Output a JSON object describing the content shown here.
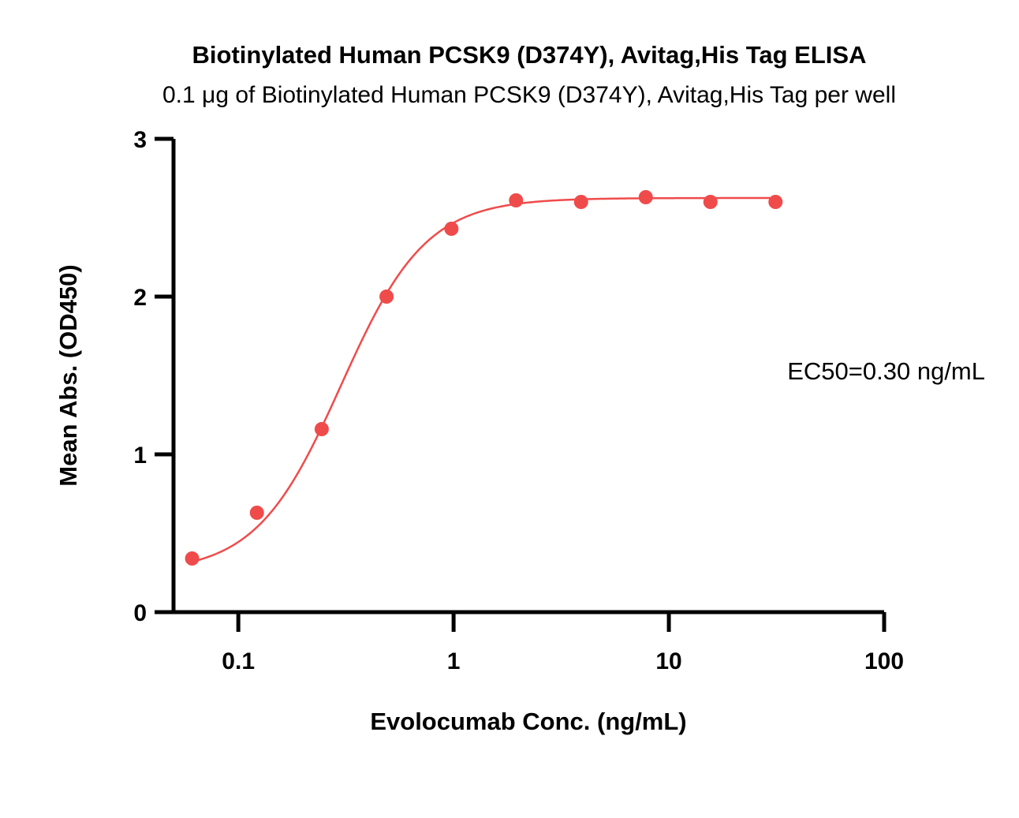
{
  "chart_data": {
    "type": "scatter",
    "title": "Biotinylated Human PCSK9 (D374Y), Avitag,His Tag ELISA",
    "subtitle": "0.1 μg of Biotinylated Human PCSK9 (D374Y), Avitag,His Tag per well",
    "xlabel": "Evolocumab Conc. (ng/mL)",
    "ylabel": "Mean Abs. (OD450)",
    "x_scale": "log",
    "xlim": [
      0.05,
      100
    ],
    "ylim": [
      0,
      3
    ],
    "x_ticks": [
      {
        "value": 0.1,
        "label": "0.1"
      },
      {
        "value": 1,
        "label": "1"
      },
      {
        "value": 10,
        "label": "10"
      },
      {
        "value": 100,
        "label": "100"
      }
    ],
    "y_ticks": [
      {
        "value": 0,
        "label": "0"
      },
      {
        "value": 1,
        "label": "1"
      },
      {
        "value": 2,
        "label": "2"
      },
      {
        "value": 3,
        "label": "3"
      }
    ],
    "grid": false,
    "annotation": "EC50=0.30 ng/mL",
    "series": [
      {
        "color": "#f04b4b",
        "marker": "circle",
        "points": [
          {
            "x": 0.061,
            "y": 0.34
          },
          {
            "x": 0.122,
            "y": 0.63
          },
          {
            "x": 0.244,
            "y": 1.16
          },
          {
            "x": 0.488,
            "y": 2.0
          },
          {
            "x": 0.977,
            "y": 2.43
          },
          {
            "x": 1.95,
            "y": 2.61
          },
          {
            "x": 3.91,
            "y": 2.6
          },
          {
            "x": 7.81,
            "y": 2.63
          },
          {
            "x": 15.6,
            "y": 2.6
          },
          {
            "x": 31.3,
            "y": 2.6
          }
        ],
        "fit": {
          "model": "4PL",
          "bottom": 0.25,
          "top": 2.625,
          "ec50": 0.3,
          "hill": 2.2,
          "x_range": [
            0.061,
            31.3
          ]
        }
      }
    ]
  }
}
